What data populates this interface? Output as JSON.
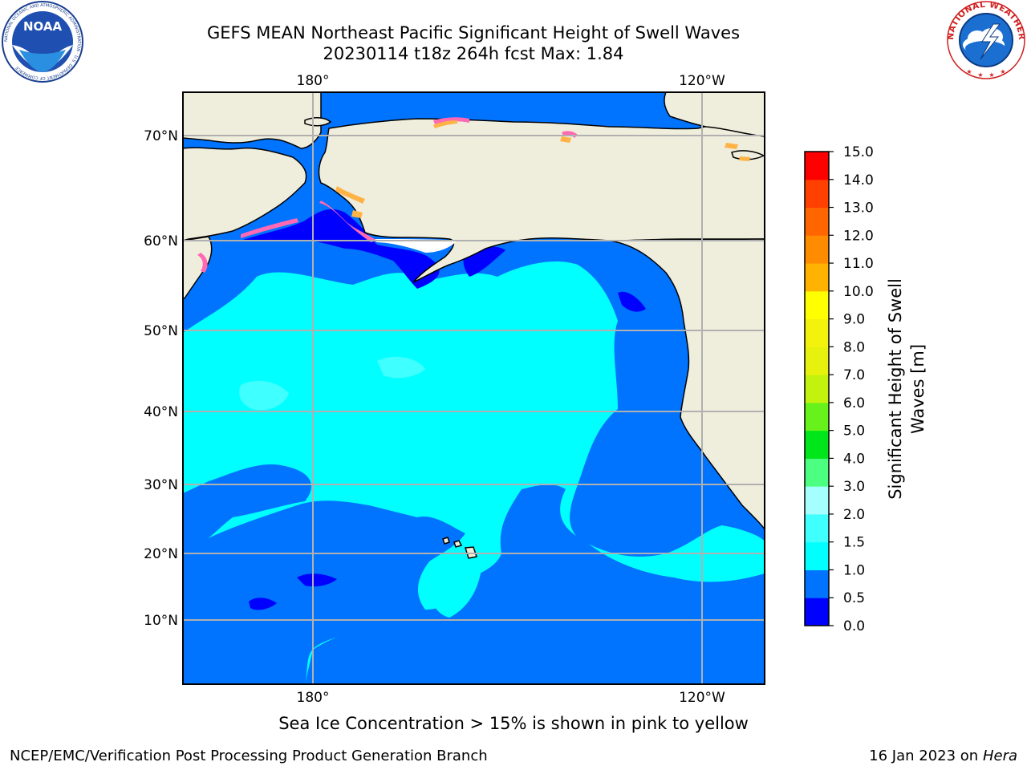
{
  "header": {
    "title_line1": "GEFS MEAN Northeast Pacific Significant Height of Swell Waves",
    "title_line2": "20230114 t18z 264h fcst   Max: 1.84"
  },
  "logos": {
    "noaa_text": "NOAA",
    "noaa_ring": "NATIONAL OCEANIC AND ATMOSPHERIC ADMINISTRATION · U.S. DEPARTMENT OF COMMERCE",
    "nws_ring": "NATIONAL WEATHER SERVICE"
  },
  "map": {
    "top_lon_labels": [
      "180°",
      "120°W"
    ],
    "bottom_lon_labels": [
      "180°",
      "120°W"
    ],
    "lat_labels": [
      "70°N",
      "60°N",
      "50°N",
      "40°N",
      "30°N",
      "20°N",
      "10°N"
    ],
    "colors": {
      "land": "#efeddc",
      "ice_white": "#ffffff",
      "ocean_0_05": "#0000ff",
      "ocean_05_10": "#0073ff",
      "ocean_10_15": "#00ffff",
      "ocean_15_20": "#40ffff",
      "ice_pink": "#ff69b4",
      "ice_orange": "#ffb347",
      "grid": "#b0b0b0"
    }
  },
  "colorbar": {
    "label_line1": "Significant Height of Swell",
    "label_line2": "Waves [m]",
    "ticks": [
      "15.0",
      "14.0",
      "13.0",
      "12.0",
      "11.0",
      "10.0",
      "9.0",
      "8.0",
      "7.0",
      "6.0",
      "5.0",
      "4.0",
      "3.0",
      "2.0",
      "1.5",
      "1.0",
      "0.5",
      "0.0"
    ],
    "bins": [
      {
        "from": 0.0,
        "to": 0.5,
        "color": "#0000ff"
      },
      {
        "from": 0.5,
        "to": 1.0,
        "color": "#0073ff"
      },
      {
        "from": 1.0,
        "to": 1.5,
        "color": "#00ffff"
      },
      {
        "from": 1.5,
        "to": 2.0,
        "color": "#40ffff"
      },
      {
        "from": 2.0,
        "to": 3.0,
        "color": "#a6ffff"
      },
      {
        "from": 3.0,
        "to": 4.0,
        "color": "#4dff80"
      },
      {
        "from": 4.0,
        "to": 5.0,
        "color": "#00e61a"
      },
      {
        "from": 5.0,
        "to": 6.0,
        "color": "#66f21a"
      },
      {
        "from": 6.0,
        "to": 7.0,
        "color": "#c2f20d"
      },
      {
        "from": 7.0,
        "to": 8.0,
        "color": "#e6f20d"
      },
      {
        "from": 8.0,
        "to": 9.0,
        "color": "#f2f20d"
      },
      {
        "from": 9.0,
        "to": 10.0,
        "color": "#ffff00"
      },
      {
        "from": 10.0,
        "to": 11.0,
        "color": "#ffb300"
      },
      {
        "from": 11.0,
        "to": 12.0,
        "color": "#ff8c00"
      },
      {
        "from": 12.0,
        "to": 13.0,
        "color": "#ff6600"
      },
      {
        "from": 13.0,
        "to": 14.0,
        "color": "#ff4000"
      },
      {
        "from": 14.0,
        "to": 15.0,
        "color": "#ff0000"
      }
    ]
  },
  "footer": {
    "note": "Sea Ice Concentration > 15% is shown in pink to yellow",
    "credit_left": "NCEP/EMC/Verification Post Processing Product Generation Branch",
    "credit_right_date": "16 Jan 2023 on ",
    "credit_right_host": "Hera"
  }
}
